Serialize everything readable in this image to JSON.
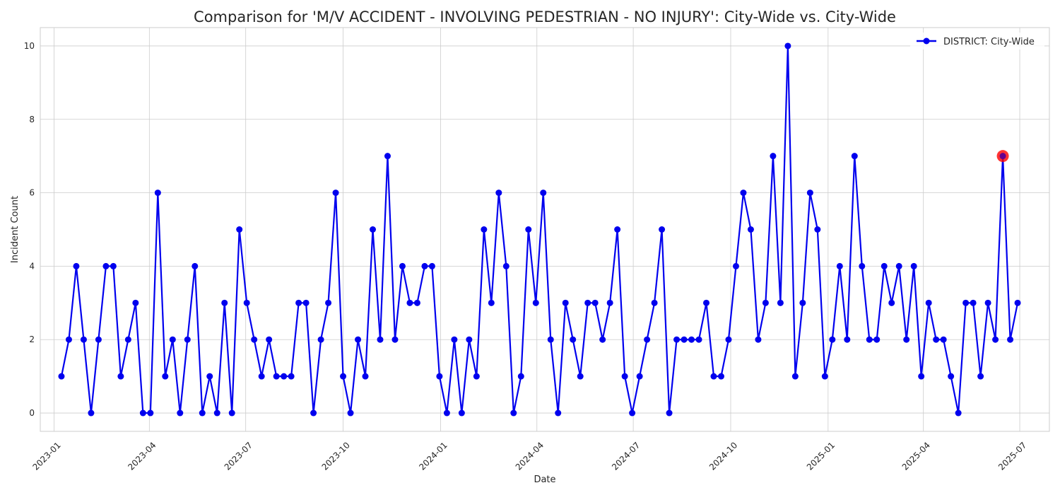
{
  "chart_data": {
    "type": "line",
    "title": "Comparison for 'M/V ACCIDENT - INVOLVING PEDESTRIAN - NO INJURY': City-Wide vs. City-Wide",
    "xlabel": "Date",
    "ylabel": "Incident Count",
    "x_ticks": [
      "2023-01",
      "2023-04",
      "2023-07",
      "2023-10",
      "2024-01",
      "2024-04",
      "2024-07",
      "2024-10",
      "2025-01",
      "2025-04",
      "2025-07"
    ],
    "y_ticks": [
      0,
      2,
      4,
      6,
      8,
      10
    ],
    "xlim": [
      "2022-12-19",
      "2025-07-29"
    ],
    "ylim": [
      -0.5,
      10.5
    ],
    "grid": true,
    "legend_position": "top-right",
    "series": [
      {
        "name": "DISTRICT: City-Wide",
        "color": "#0000ee",
        "marker": "circle",
        "start_date": "2023-01-08",
        "interval_days": 7,
        "values": [
          1,
          2,
          4,
          2,
          0,
          2,
          4,
          4,
          1,
          2,
          3,
          0,
          0,
          6,
          1,
          2,
          0,
          2,
          4,
          0,
          1,
          0,
          3,
          0,
          5,
          3,
          2,
          1,
          2,
          1,
          1,
          1,
          3,
          3,
          0,
          2,
          3,
          6,
          1,
          0,
          2,
          1,
          5,
          2,
          7,
          2,
          4,
          3,
          3,
          4,
          4,
          1,
          0,
          2,
          0,
          2,
          1,
          5,
          3,
          6,
          4,
          0,
          1,
          5,
          3,
          6,
          2,
          0,
          3,
          2,
          1,
          3,
          3,
          2,
          3,
          5,
          1,
          0,
          1,
          2,
          3,
          5,
          0,
          2,
          2,
          2,
          2,
          3,
          1,
          1,
          2,
          4,
          6,
          5,
          2,
          3,
          7,
          3,
          10,
          1,
          3,
          6,
          5,
          1,
          2,
          4,
          2,
          7,
          4,
          2,
          2,
          4,
          3,
          4,
          2,
          4,
          1,
          3,
          2,
          2,
          1,
          0,
          3,
          3,
          1,
          3,
          2,
          7,
          2,
          3
        ]
      }
    ],
    "highlight": {
      "date": "2025-06-15",
      "value": 7,
      "color": "#ff0000"
    }
  }
}
